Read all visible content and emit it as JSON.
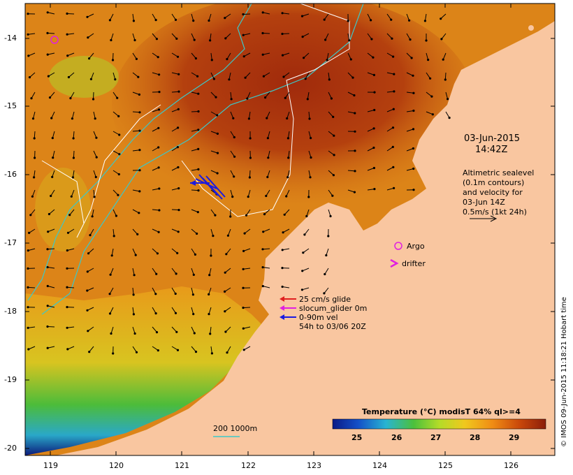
{
  "map": {
    "lat_ticks": [
      "-14",
      "-15",
      "-16",
      "-17",
      "-18",
      "-19",
      "-20"
    ],
    "lon_ticks": [
      "119",
      "120",
      "121",
      "122",
      "123",
      "124",
      "125",
      "126"
    ],
    "colors": {
      "land": "#f9c6a0",
      "warm": "#a02a0c",
      "mid": "#e28b18",
      "cool": "#3bb24a",
      "cold": "#0b1a7a"
    }
  },
  "annotations": {
    "datetime_line1": "03-Jun-2015",
    "datetime_line2": "14:42Z",
    "altimetry": [
      "Altimetric sealevel",
      "(0.1m contours)",
      "and velocity for",
      "03-Jun 14Z",
      "0.5m/s (1kt 24h)"
    ],
    "argo_label": "Argo",
    "drifter_label": "drifter",
    "glider_legend": [
      "25 cm/s glide",
      "slocum_glider 0m",
      "0-90m vel",
      "54h to 03/06 20Z"
    ],
    "depth_legend": "200  1000m"
  },
  "colorbar": {
    "title": "Temperature (°C) modisT 64% ql>=4",
    "ticks": [
      "25",
      "26",
      "27",
      "28",
      "29"
    ],
    "stops": [
      "#0a1a86",
      "#1450c8",
      "#28b4d2",
      "#4cc03c",
      "#b4dc28",
      "#f0c81e",
      "#f08c14",
      "#c8460a",
      "#8c1e0a"
    ]
  },
  "credit": "© IMOS 09-Jun-2015 11:18:21 Hobart time"
}
